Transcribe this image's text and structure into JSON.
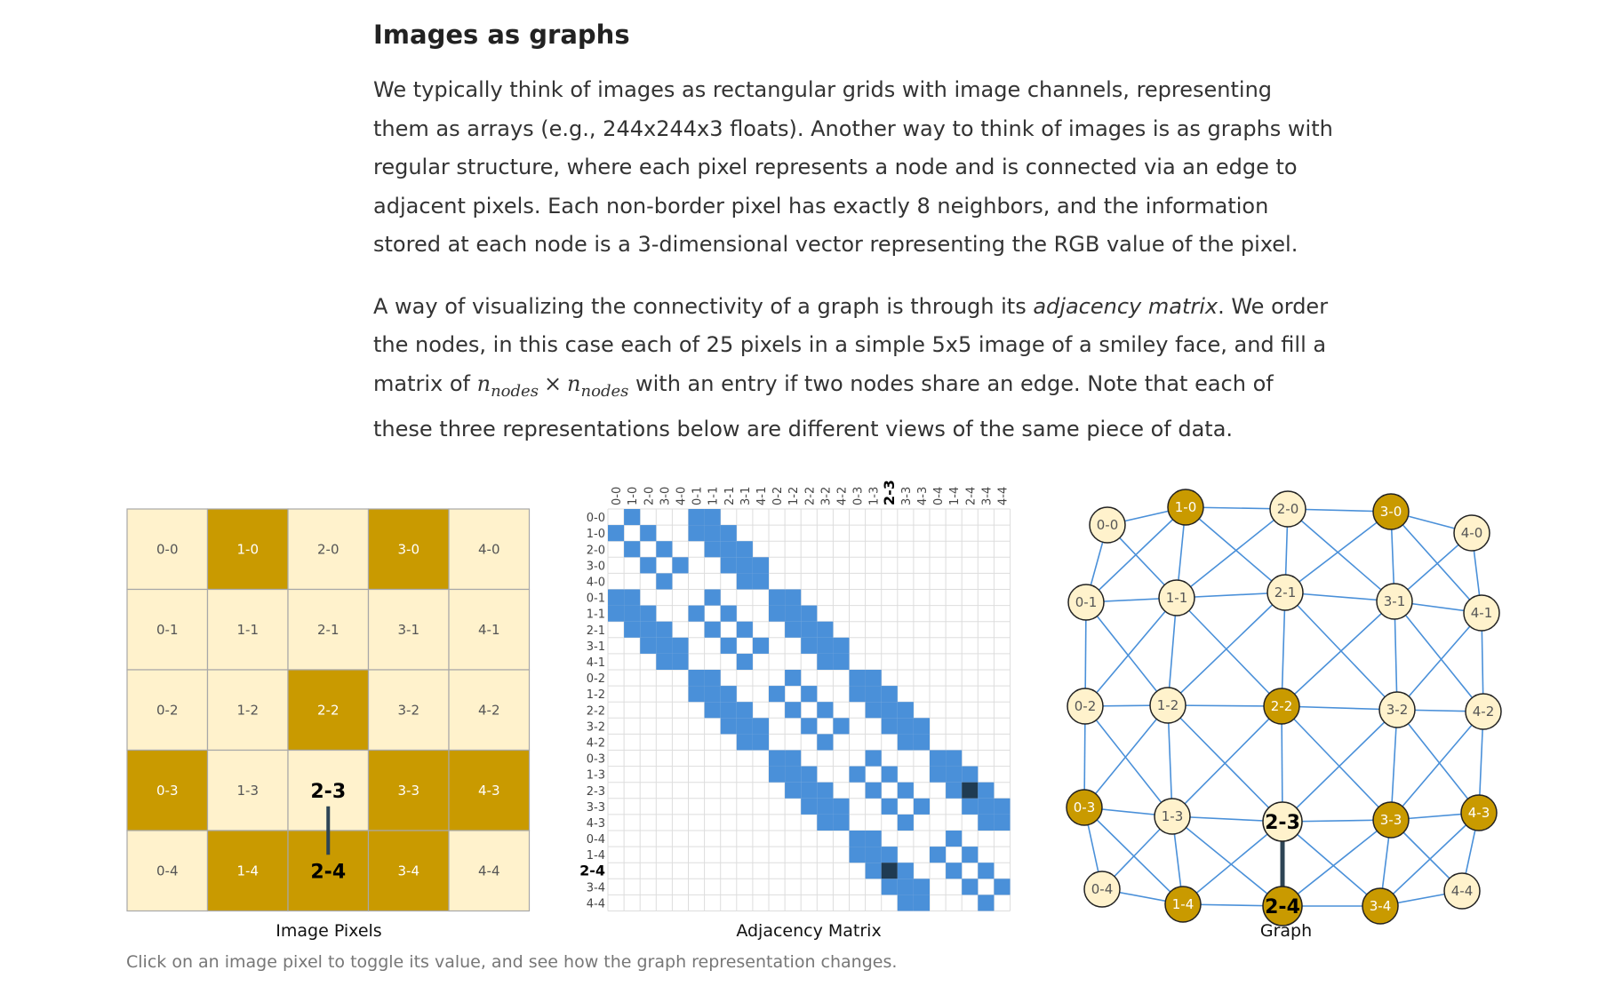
{
  "article": {
    "heading": "Images as graphs",
    "p1": "We typically think of images as rectangular grids with image channels, representing them as arrays (e.g., 244x244x3 floats). Another way to think of images is as graphs with regular structure, where each pixel represents a node and is connected via an edge to adjacent pixels. Each non-border pixel has exactly 8 neighbors, and the information stored at each node is a 3-dimensional vector representing the RGB value of the pixel.",
    "p2_before": "A way of visualizing the connectivity of a graph is through its ",
    "p2_em": "adjacency matrix",
    "p2_after": ". We order the nodes, in this case each of 25 pixels in a simple 5x5 image of a smiley face, and fill a matrix of ",
    "math_n": "n",
    "math_sub": "nodes",
    "math_times": "×",
    "p2_end": " with an entry if two nodes share an edge. Note that each of these three representations below are different views of the same piece of data."
  },
  "figure": {
    "panel_titles": [
      "Image Pixels",
      "Adjacency Matrix",
      "Graph"
    ],
    "caption": "Click on an image pixel to toggle its value, and see how the graph representation changes.",
    "grid_size": 5,
    "on_pixels": [
      "1-0",
      "3-0",
      "2-2",
      "0-3",
      "3-3",
      "4-3",
      "1-4",
      "2-4",
      "3-4"
    ],
    "selected_edge": [
      "2-3",
      "2-4"
    ],
    "colors": {
      "pixel_on": "#c99a00",
      "pixel_off": "#fff2cc",
      "grid_line": "#a8a8a8",
      "matrix_fill": "#4a90d9",
      "matrix_selected": "#1f3b52",
      "edge": "#4a90d9",
      "node_stroke": "#222222",
      "highlight_line": "#2d4455",
      "label_on": "#ffffff",
      "label_off": "#555555"
    }
  }
}
